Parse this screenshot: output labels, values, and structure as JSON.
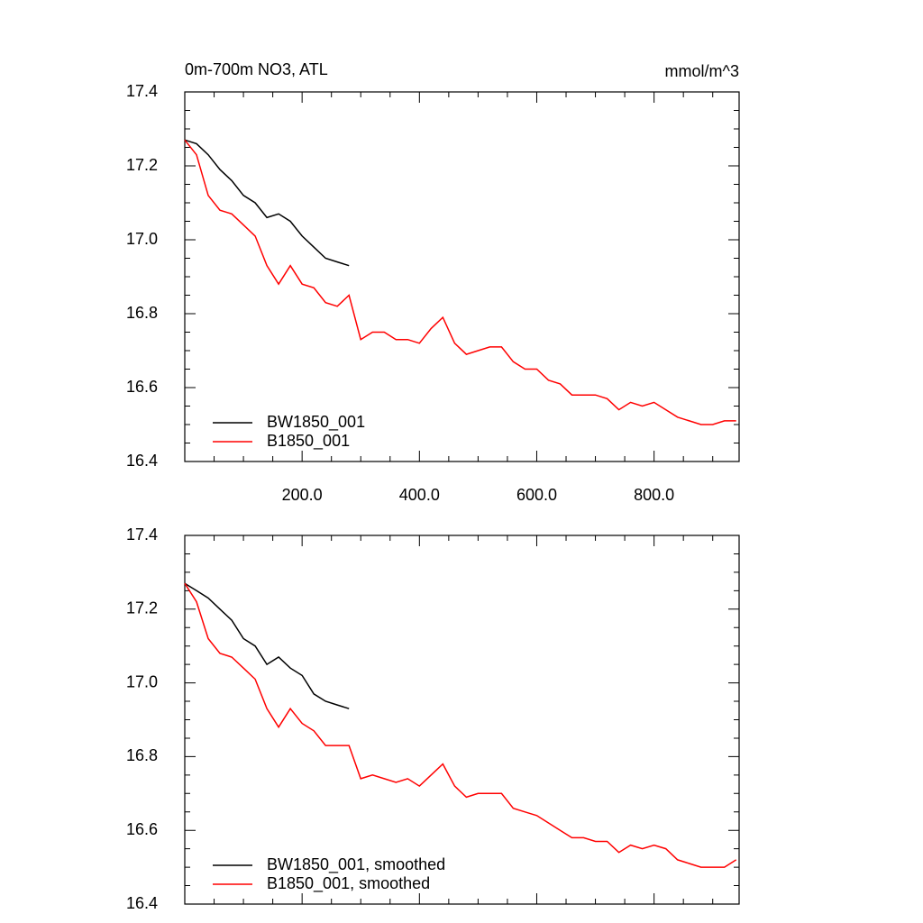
{
  "chart_data": [
    {
      "type": "line",
      "title": "0m-700m NO3, ATL",
      "subtitle": "mmol/m^3",
      "x": [
        0,
        20,
        40,
        60,
        80,
        100,
        120,
        140,
        160,
        180,
        200,
        220,
        240,
        260,
        280,
        300,
        320,
        340,
        360,
        380,
        400,
        420,
        440,
        460,
        480,
        500,
        520,
        540,
        560,
        580,
        600,
        620,
        640,
        660,
        680,
        700,
        720,
        740,
        760,
        780,
        800,
        820,
        840,
        860,
        880,
        900,
        920,
        940
      ],
      "series": [
        {
          "name": "BW1850_001",
          "color": "#000000",
          "values": [
            17.27,
            17.26,
            17.23,
            17.19,
            17.16,
            17.12,
            17.1,
            17.06,
            17.07,
            17.05,
            17.01,
            16.98,
            16.95,
            16.94,
            16.93,
            null,
            null,
            null,
            null,
            null,
            null,
            null,
            null,
            null,
            null,
            null,
            null,
            null,
            null,
            null,
            null,
            null,
            null,
            null,
            null,
            null,
            null,
            null,
            null,
            null,
            null,
            null,
            null,
            null,
            null,
            null,
            null,
            null
          ]
        },
        {
          "name": "B1850_001",
          "color": "#ff0000",
          "values": [
            17.27,
            17.23,
            17.12,
            17.08,
            17.07,
            17.04,
            17.01,
            16.93,
            16.88,
            16.93,
            16.88,
            16.87,
            16.83,
            16.82,
            16.85,
            16.73,
            16.75,
            16.75,
            16.73,
            16.73,
            16.72,
            16.76,
            16.79,
            16.72,
            16.69,
            16.7,
            16.71,
            16.71,
            16.67,
            16.65,
            16.65,
            16.62,
            16.61,
            16.58,
            16.58,
            16.58,
            16.57,
            16.54,
            16.56,
            16.55,
            16.56,
            16.54,
            16.52,
            16.51,
            16.5,
            16.5,
            16.51,
            16.51
          ]
        }
      ],
      "xlim": [
        0,
        945
      ],
      "ylim": [
        16.4,
        17.4
      ],
      "xticks": [
        {
          "value": 200,
          "label": "200.0"
        },
        {
          "value": 400,
          "label": "400.0"
        },
        {
          "value": 600,
          "label": "600.0"
        },
        {
          "value": 800,
          "label": "800.0"
        }
      ],
      "yticks": [
        16.4,
        16.6,
        16.8,
        {
          "value": 17,
          "label": "17.0"
        },
        17.2,
        17.4
      ],
      "xtick_labels": true,
      "legend": "lower left"
    },
    {
      "type": "line",
      "x": [
        0,
        20,
        40,
        60,
        80,
        100,
        120,
        140,
        160,
        180,
        200,
        220,
        240,
        260,
        280,
        300,
        320,
        340,
        360,
        380,
        400,
        420,
        440,
        460,
        480,
        500,
        520,
        540,
        560,
        580,
        600,
        620,
        640,
        660,
        680,
        700,
        720,
        740,
        760,
        780,
        800,
        820,
        840,
        860,
        880,
        900,
        920,
        940
      ],
      "series": [
        {
          "name": "BW1850_001, smoothed",
          "color": "#000000",
          "values": [
            17.27,
            17.25,
            17.23,
            17.2,
            17.17,
            17.12,
            17.1,
            17.05,
            17.07,
            17.04,
            17.02,
            16.97,
            16.95,
            16.94,
            16.93,
            null,
            null,
            null,
            null,
            null,
            null,
            null,
            null,
            null,
            null,
            null,
            null,
            null,
            null,
            null,
            null,
            null,
            null,
            null,
            null,
            null,
            null,
            null,
            null,
            null,
            null,
            null,
            null,
            null,
            null,
            null,
            null,
            null
          ]
        },
        {
          "name": "B1850_001, smoothed",
          "color": "#ff0000",
          "values": [
            17.27,
            17.22,
            17.12,
            17.08,
            17.07,
            17.04,
            17.01,
            16.93,
            16.88,
            16.93,
            16.89,
            16.87,
            16.83,
            16.83,
            16.83,
            16.74,
            16.75,
            16.74,
            16.73,
            16.74,
            16.72,
            16.75,
            16.78,
            16.72,
            16.69,
            16.7,
            16.7,
            16.7,
            16.66,
            16.65,
            16.64,
            16.62,
            16.6,
            16.58,
            16.58,
            16.57,
            16.57,
            16.54,
            16.56,
            16.55,
            16.56,
            16.55,
            16.52,
            16.51,
            16.5,
            16.5,
            16.5,
            16.52
          ]
        }
      ],
      "xlim": [
        0,
        945
      ],
      "ylim": [
        16.4,
        17.4
      ],
      "xticks": [
        200,
        400,
        600,
        800
      ],
      "yticks": [
        16.4,
        16.6,
        16.8,
        {
          "value": 17,
          "label": "17.0"
        },
        17.2,
        17.4
      ],
      "xtick_labels": false,
      "legend": "lower left"
    }
  ]
}
